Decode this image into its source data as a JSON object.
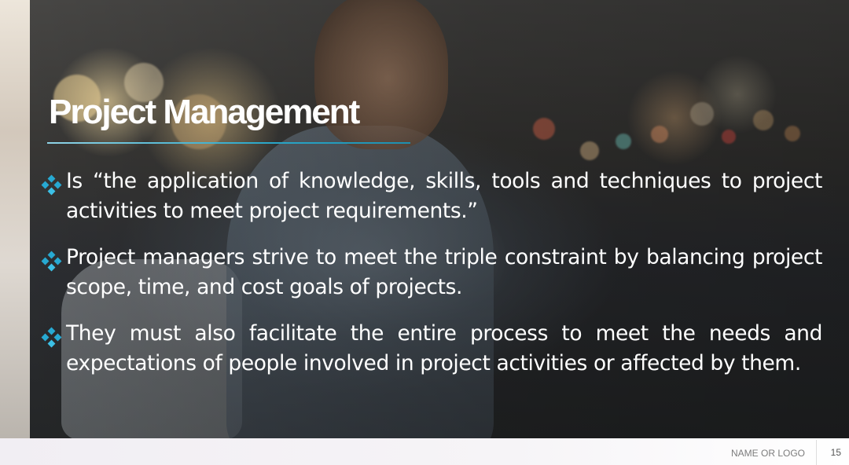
{
  "slide": {
    "title": "Project Management",
    "bullets": [
      "Is “the application of knowledge, skills, tools and techniques to project activities to meet project requirements.”",
      "Project managers strive to meet the triple constraint by balancing project scope, time, and cost goals of projects.",
      "They must also facilitate the entire process to meet the needs and expectations of people involved in project activities or affected by them."
    ],
    "bullet_icon": "four-diamond-bullet-icon",
    "background": "photo of man with backpack looking at phone on a blurred city street at dusk"
  },
  "footer": {
    "logo_text": "NAME OR LOGO",
    "page_number": "15"
  },
  "colors": {
    "title": "#ffffff",
    "body_text": "#ffffff",
    "accent": "#27a9d2",
    "footer_text": "#7c7c7c"
  }
}
